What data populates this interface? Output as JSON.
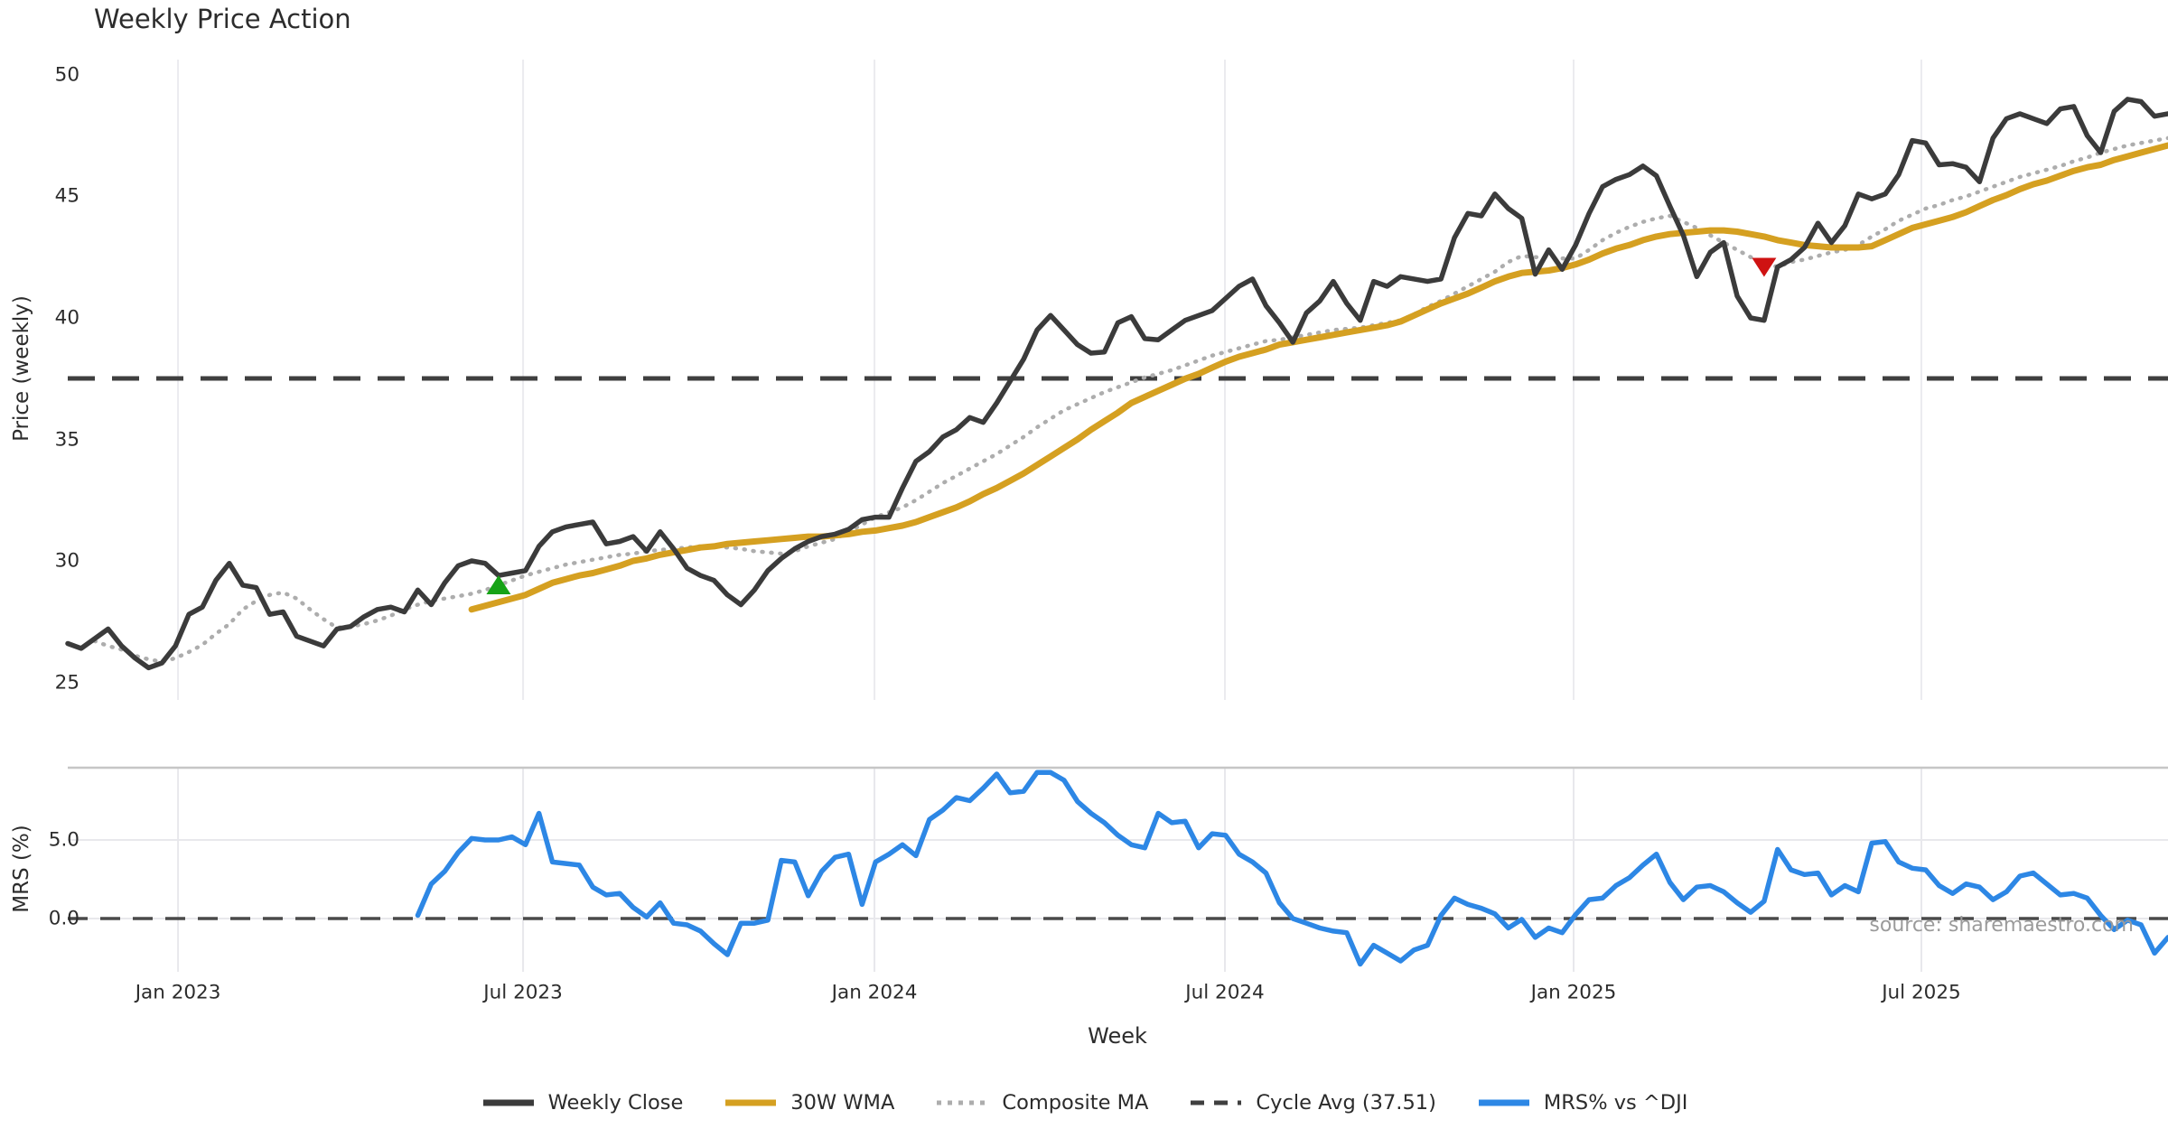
{
  "title": "Weekly Price Action",
  "source_note": "source: sharemaestro.com",
  "colors": {
    "close": "#3b3b3b",
    "wma": "#d5a021",
    "composite": "#adadad",
    "cycle": "#3f3f3f",
    "mrs": "#2d87e5",
    "buy_marker": "#17a317",
    "sell_marker": "#cf1212",
    "grid": "#ebebef",
    "mrs_grid": "#e8e8ec",
    "mrs_spine": "#c6c6c6",
    "zero_line": "#4a4a4a",
    "text": "#2c2c2c",
    "muted_text": "#9b9b9b"
  },
  "legend": {
    "items": [
      {
        "label": "Weekly Close",
        "style": "solid",
        "color": "#3b3b3b"
      },
      {
        "label": "30W WMA",
        "style": "solid",
        "color": "#d5a021"
      },
      {
        "label": "Composite MA",
        "style": "dotted",
        "color": "#adadad"
      },
      {
        "label": "Cycle Avg (37.51)",
        "style": "dashed",
        "color": "#3f3f3f"
      },
      {
        "label": "MRS% vs ^DJI",
        "style": "solid",
        "color": "#2d87e5"
      }
    ]
  },
  "chart_data": {
    "type": "line",
    "title": "Weekly Price Action",
    "xlabel": "Week",
    "weeks": 157,
    "xticks": [
      {
        "label": "Jan 2023",
        "week": 8.19
      },
      {
        "label": "Jul 2023",
        "week": 33.82
      },
      {
        "label": "Jan 2024",
        "week": 59.92
      },
      {
        "label": "Jul 2024",
        "week": 85.95
      },
      {
        "label": "Jan 2025",
        "week": 111.85
      },
      {
        "label": "Jul 2025",
        "week": 137.68
      }
    ],
    "price_panel": {
      "ylabel": "Price (weekly)",
      "ylim": [
        23.72,
        50.63
      ],
      "yticks": [
        25,
        30,
        35,
        40,
        45,
        50
      ],
      "cycle_avg": 37.51
    },
    "mrs_panel": {
      "ylabel": "MRS (%)",
      "ylim": [
        -3.39,
        9.6
      ],
      "yticks": [
        {
          "label": "0.0",
          "value": 0
        },
        {
          "label": "5.0",
          "value": 5
        }
      ],
      "zero_line": 0
    },
    "markers": [
      {
        "type": "buy",
        "week": 32,
        "value": 29.0
      },
      {
        "type": "sell",
        "week": 126,
        "value": 42.1
      }
    ],
    "series": [
      {
        "name": "Weekly Close",
        "values": [
          26.6,
          26.4,
          26.8,
          27.2,
          26.5,
          26.0,
          25.6,
          25.8,
          26.5,
          27.8,
          28.1,
          29.2,
          29.9,
          29.0,
          28.9,
          27.8,
          27.9,
          26.9,
          26.7,
          26.5,
          27.2,
          27.3,
          27.7,
          28.0,
          28.1,
          27.9,
          28.8,
          28.2,
          29.1,
          29.8,
          30.0,
          29.9,
          29.4,
          29.5,
          29.6,
          30.6,
          31.2,
          31.4,
          31.5,
          31.6,
          30.7,
          30.8,
          31.0,
          30.4,
          31.2,
          30.5,
          29.7,
          29.4,
          29.2,
          28.6,
          28.2,
          28.8,
          29.6,
          30.1,
          30.5,
          30.8,
          31.0,
          31.1,
          31.3,
          31.7,
          31.8,
          31.8,
          33.0,
          34.1,
          34.5,
          35.1,
          35.4,
          35.9,
          35.7,
          36.5,
          37.4,
          38.3,
          39.5,
          40.1,
          39.5,
          38.9,
          38.55,
          38.6,
          39.8,
          40.05,
          39.15,
          39.1,
          39.5,
          39.9,
          40.1,
          40.3,
          40.8,
          41.3,
          41.6,
          40.5,
          39.8,
          39.0,
          40.2,
          40.7,
          41.5,
          40.6,
          39.9,
          41.5,
          41.3,
          41.7,
          41.6,
          41.5,
          41.6,
          43.3,
          44.3,
          44.2,
          45.1,
          44.5,
          44.1,
          41.8,
          42.8,
          42.0,
          43.0,
          44.3,
          45.4,
          45.7,
          45.9,
          46.25,
          45.85,
          44.6,
          43.4,
          41.7,
          42.7,
          43.1,
          40.9,
          40.0,
          39.9,
          42.1,
          42.4,
          42.9,
          43.9,
          43.1,
          43.8,
          45.1,
          44.9,
          45.1,
          45.9,
          47.3,
          47.2,
          46.3,
          46.35,
          46.2,
          45.6,
          47.4,
          48.2,
          48.4,
          48.2,
          48.0,
          48.6,
          48.7,
          47.5,
          46.8,
          48.5,
          49.0,
          48.9,
          48.3,
          48.4
        ]
      },
      {
        "name": "30W WMA",
        "values": [
          null,
          null,
          null,
          null,
          null,
          null,
          null,
          null,
          null,
          null,
          null,
          null,
          null,
          null,
          null,
          null,
          null,
          null,
          null,
          null,
          null,
          null,
          null,
          null,
          null,
          null,
          null,
          null,
          null,
          null,
          28.0,
          28.15,
          28.3,
          28.45,
          28.6,
          28.85,
          29.1,
          29.25,
          29.4,
          29.5,
          29.65,
          29.8,
          30.0,
          30.1,
          30.25,
          30.35,
          30.45,
          30.55,
          30.6,
          30.7,
          30.75,
          30.8,
          30.85,
          30.9,
          30.95,
          31.0,
          31.0,
          31.05,
          31.1,
          31.2,
          31.25,
          31.35,
          31.45,
          31.6,
          31.8,
          32.0,
          32.2,
          32.45,
          32.75,
          33.0,
          33.3,
          33.6,
          33.95,
          34.3,
          34.65,
          35.0,
          35.4,
          35.75,
          36.1,
          36.5,
          36.75,
          37.0,
          37.25,
          37.5,
          37.7,
          37.95,
          38.2,
          38.4,
          38.55,
          38.7,
          38.9,
          39.0,
          39.1,
          39.2,
          39.3,
          39.4,
          39.5,
          39.6,
          39.7,
          39.85,
          40.1,
          40.35,
          40.6,
          40.8,
          41.0,
          41.25,
          41.5,
          41.7,
          41.85,
          41.9,
          41.95,
          42.05,
          42.2,
          42.4,
          42.65,
          42.85,
          43.0,
          43.2,
          43.35,
          43.45,
          43.5,
          43.55,
          43.6,
          43.6,
          43.55,
          43.45,
          43.35,
          43.2,
          43.1,
          43.0,
          42.95,
          42.9,
          42.9,
          42.9,
          42.95,
          43.2,
          43.45,
          43.7,
          43.85,
          44.0,
          44.15,
          44.35,
          44.6,
          44.85,
          45.05,
          45.3,
          45.5,
          45.65,
          45.85,
          46.05,
          46.2,
          46.3,
          46.5,
          46.65,
          46.8,
          46.95,
          47.1
        ]
      },
      {
        "name": "Composite MA",
        "values": [
          null,
          null,
          26.7,
          26.5,
          26.35,
          26.1,
          25.95,
          25.85,
          26.0,
          26.25,
          26.55,
          27.0,
          27.4,
          28.0,
          28.35,
          28.6,
          28.7,
          28.45,
          28.0,
          27.6,
          27.25,
          27.3,
          27.4,
          27.55,
          27.75,
          28.0,
          28.2,
          28.35,
          28.45,
          28.55,
          28.65,
          28.8,
          29.0,
          29.2,
          29.4,
          29.55,
          29.7,
          29.85,
          29.95,
          30.05,
          30.15,
          30.25,
          30.3,
          30.4,
          30.45,
          30.5,
          30.55,
          30.6,
          30.6,
          30.55,
          30.5,
          30.4,
          30.35,
          30.3,
          30.4,
          30.6,
          30.75,
          30.9,
          31.2,
          31.5,
          31.8,
          32.0,
          32.2,
          32.5,
          32.85,
          33.2,
          33.5,
          33.8,
          34.1,
          34.4,
          34.75,
          35.1,
          35.5,
          35.85,
          36.2,
          36.45,
          36.7,
          36.95,
          37.15,
          37.35,
          37.55,
          37.7,
          37.85,
          38.05,
          38.25,
          38.45,
          38.6,
          38.75,
          38.9,
          39.05,
          39.1,
          39.2,
          39.3,
          39.4,
          39.5,
          39.55,
          39.6,
          39.7,
          39.8,
          39.9,
          40.15,
          40.45,
          40.7,
          41.0,
          41.3,
          41.6,
          41.9,
          42.3,
          42.55,
          42.5,
          42.5,
          42.45,
          42.45,
          42.8,
          43.2,
          43.5,
          43.75,
          43.95,
          44.1,
          44.2,
          43.95,
          43.7,
          43.4,
          43.1,
          42.8,
          42.5,
          42.25,
          42.1,
          42.3,
          42.4,
          42.55,
          42.7,
          42.8,
          43.0,
          43.35,
          43.65,
          44.0,
          44.25,
          44.5,
          44.65,
          44.85,
          45.0,
          45.2,
          45.4,
          45.6,
          45.8,
          45.95,
          46.1,
          46.25,
          46.45,
          46.6,
          46.8,
          46.95,
          47.1,
          47.2,
          47.3,
          47.4
        ]
      },
      {
        "name": "MRS% vs ^DJI",
        "values": [
          null,
          null,
          null,
          null,
          null,
          null,
          null,
          null,
          null,
          null,
          null,
          null,
          null,
          null,
          null,
          null,
          null,
          null,
          null,
          null,
          null,
          null,
          null,
          null,
          null,
          null,
          0.2,
          2.2,
          3.0,
          4.2,
          5.1,
          5.0,
          5.0,
          5.2,
          4.7,
          6.7,
          3.6,
          3.5,
          3.4,
          2.0,
          1.5,
          1.6,
          0.7,
          0.1,
          1.0,
          -0.3,
          -0.4,
          -0.8,
          -1.6,
          -2.3,
          -0.3,
          -0.3,
          -0.1,
          3.7,
          3.6,
          1.45,
          3.0,
          3.9,
          4.1,
          0.9,
          3.6,
          4.1,
          4.7,
          4.0,
          6.3,
          6.9,
          7.7,
          7.5,
          8.3,
          9.2,
          8.0,
          8.1,
          9.3,
          9.3,
          8.8,
          7.45,
          6.7,
          6.1,
          5.3,
          4.7,
          4.5,
          6.7,
          6.1,
          6.2,
          4.5,
          5.4,
          5.3,
          4.1,
          3.6,
          2.9,
          1.0,
          0.0,
          -0.3,
          -0.6,
          -0.8,
          -0.9,
          -2.9,
          -1.7,
          -2.2,
          -2.7,
          -2.0,
          -1.7,
          0.2,
          1.3,
          0.9,
          0.65,
          0.3,
          -0.6,
          -0.05,
          -1.2,
          -0.6,
          -0.9,
          0.25,
          1.2,
          1.3,
          2.1,
          2.6,
          3.4,
          4.1,
          2.3,
          1.2,
          2.0,
          2.1,
          1.7,
          1.0,
          0.4,
          1.1,
          4.4,
          3.1,
          2.8,
          2.9,
          1.5,
          2.1,
          1.7,
          4.8,
          4.9,
          3.6,
          3.2,
          3.1,
          2.1,
          1.6,
          2.2,
          2.0,
          1.2,
          1.7,
          2.7,
          2.9,
          2.2,
          1.5,
          1.6,
          1.3,
          0.2,
          -0.7,
          -0.1,
          -0.4,
          -2.2,
          -1.2
        ]
      }
    ]
  }
}
